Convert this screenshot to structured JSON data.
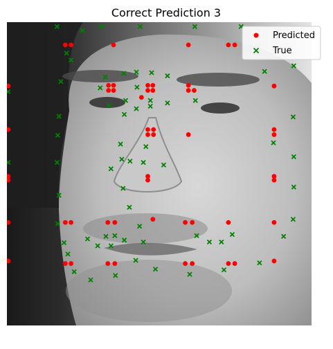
{
  "chart_data": {
    "type": "scatter",
    "title": "Correct Prediction 3",
    "xlabel": "",
    "ylabel": "",
    "axes_visible": false,
    "xlim": [
      0,
      96
    ],
    "ylim": [
      96,
      0
    ],
    "background": "grayscale-face-photo",
    "legend": {
      "placement": "top-right"
    },
    "series": [
      {
        "name": "Predicted",
        "marker": "circle",
        "color": "#ff0000",
        "points": [
          [
            0.4,
            20.4
          ],
          [
            18.4,
            19.6
          ],
          [
            20.2,
            19.6
          ],
          [
            31.8,
            19.6
          ],
          [
            34.0,
            19.6
          ],
          [
            56.2,
            19.6
          ],
          [
            58.4,
            19.6
          ],
          [
            69.8,
            19.6
          ],
          [
            71.8,
            19.6
          ],
          [
            84.2,
            20.4
          ],
          [
            0.4,
            32.6
          ],
          [
            18.4,
            32.6
          ],
          [
            20.2,
            32.6
          ],
          [
            31.8,
            32.6
          ],
          [
            34.0,
            32.6
          ],
          [
            46.0,
            33.6
          ],
          [
            56.2,
            32.6
          ],
          [
            58.4,
            32.6
          ],
          [
            69.8,
            32.6
          ],
          [
            84.2,
            32.6
          ],
          [
            0.4,
            46.0
          ],
          [
            0.4,
            47.2
          ],
          [
            44.4,
            46.0
          ],
          [
            44.4,
            47.2
          ],
          [
            84.2,
            46.0
          ],
          [
            84.2,
            47.2
          ],
          [
            0.4,
            62.0
          ],
          [
            44.4,
            60.4
          ],
          [
            46.2,
            60.4
          ],
          [
            44.4,
            62.0
          ],
          [
            46.2,
            62.0
          ],
          [
            57.2,
            60.4
          ],
          [
            84.2,
            60.4
          ],
          [
            84.2,
            62.0
          ],
          [
            0.4,
            75.8
          ],
          [
            32.0,
            74.4
          ],
          [
            33.6,
            74.4
          ],
          [
            32.0,
            76.0
          ],
          [
            33.6,
            76.0
          ],
          [
            42.4,
            72.2
          ],
          [
            44.4,
            74.4
          ],
          [
            46.0,
            74.4
          ],
          [
            44.4,
            76.0
          ],
          [
            46.0,
            76.0
          ],
          [
            57.2,
            74.4
          ],
          [
            59.0,
            74.4
          ],
          [
            57.2,
            76.0
          ],
          [
            84.2,
            75.8
          ],
          [
            18.4,
            88.8
          ],
          [
            20.2,
            88.8
          ],
          [
            33.6,
            88.8
          ],
          [
            57.2,
            88.8
          ],
          [
            69.8,
            88.8
          ],
          [
            71.8,
            88.8
          ]
        ]
      },
      {
        "name": "True",
        "marker": "x",
        "color": "#008000",
        "points": [
          [
            26.4,
            14.4
          ],
          [
            34.2,
            15.8
          ],
          [
            21.2,
            17.0
          ],
          [
            40.6,
            20.6
          ],
          [
            46.8,
            17.8
          ],
          [
            57.6,
            16.2
          ],
          [
            68.4,
            17.6
          ],
          [
            79.6,
            19.8
          ],
          [
            19.2,
            22.6
          ],
          [
            18.0,
            26.2
          ],
          [
            25.4,
            27.4
          ],
          [
            28.6,
            25.2
          ],
          [
            31.2,
            28.2
          ],
          [
            32.8,
            25.2
          ],
          [
            34.0,
            28.4
          ],
          [
            37.0,
            27.0
          ],
          [
            43.0,
            26.4
          ],
          [
            59.8,
            28.4
          ],
          [
            63.8,
            26.4
          ],
          [
            67.6,
            26.4
          ],
          [
            71.0,
            28.8
          ],
          [
            87.2,
            28.2
          ],
          [
            16.0,
            32.2
          ],
          [
            41.8,
            31.4
          ],
          [
            38.6,
            37.4
          ],
          [
            90.2,
            33.6
          ],
          [
            16.4,
            41.2
          ],
          [
            36.6,
            43.4
          ],
          [
            90.4,
            43.8
          ],
          [
            15.8,
            51.6
          ],
          [
            32.8,
            49.6
          ],
          [
            36.2,
            52.6
          ],
          [
            38.8,
            52.0
          ],
          [
            43.0,
            51.6
          ],
          [
            49.4,
            50.8
          ],
          [
            43.8,
            56.6
          ],
          [
            90.4,
            53.4
          ],
          [
            0.4,
            51.6
          ],
          [
            16.0,
            60.2
          ],
          [
            35.8,
            57.4
          ],
          [
            84.0,
            57.8
          ],
          [
            16.4,
            66.2
          ],
          [
            37.0,
            66.8
          ],
          [
            40.8,
            68.6
          ],
          [
            45.2,
            69.4
          ],
          [
            32.2,
            69.6
          ],
          [
            37.4,
            71.2
          ],
          [
            45.2,
            71.2
          ],
          [
            50.6,
            70.4
          ],
          [
            59.4,
            71.2
          ],
          [
            29.4,
            75.2
          ],
          [
            41.0,
            75.4
          ],
          [
            17.0,
            77.2
          ],
          [
            31.0,
            78.6
          ],
          [
            36.8,
            79.8
          ],
          [
            40.8,
            80.2
          ],
          [
            45.6,
            80.0
          ],
          [
            50.6,
            79.0
          ],
          [
            0.4,
            74.0
          ],
          [
            90.2,
            66.0
          ],
          [
            18.8,
            86.2
          ],
          [
            20.2,
            84.0
          ],
          [
            81.2,
            80.4
          ],
          [
            90.4,
            82.2
          ],
          [
            23.8,
            93.4
          ],
          [
            29.8,
            94.6
          ],
          [
            42.0,
            94.6
          ],
          [
            59.2,
            94.6
          ],
          [
            73.8,
            94.6
          ],
          [
            85.6,
            91.6
          ],
          [
            15.8,
            94.6
          ]
        ]
      }
    ]
  }
}
